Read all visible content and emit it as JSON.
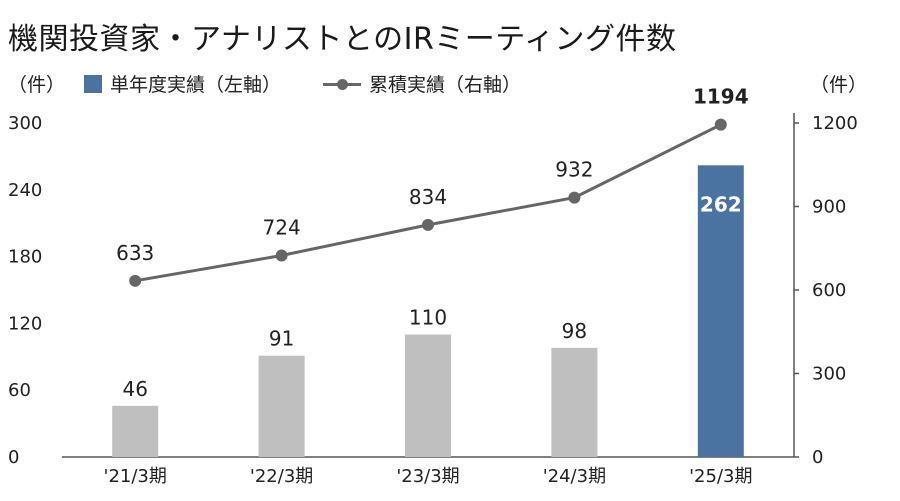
{
  "title": "機関投資家・アナリストとのIRミーティング件数",
  "units": {
    "left": "（件）",
    "right": "（件）"
  },
  "legend": {
    "bar": "単年度実績（左軸）",
    "line": "累積実績（右軸）"
  },
  "colors": {
    "bar": "#bfbfbf",
    "bar_highlight": "#4a73a2",
    "line": "#666666",
    "axis": "#555555"
  },
  "chart_data": {
    "type": "bar+line",
    "categories": [
      "'21/3期",
      "'22/3期",
      "'23/3期",
      "'24/3期",
      "'25/3期"
    ],
    "series": [
      {
        "name": "単年度実績（左軸）",
        "type": "bar",
        "axis": "left",
        "values": [
          46,
          91,
          110,
          98,
          262
        ],
        "value_labels": [
          "46",
          "91",
          "110",
          "98",
          "262"
        ]
      },
      {
        "name": "累積実績（右軸）",
        "type": "line",
        "axis": "right",
        "values": [
          633,
          724,
          834,
          932,
          1194
        ],
        "value_labels": [
          "633",
          "724",
          "834",
          "932",
          "1194"
        ]
      }
    ],
    "highlight_index": 4,
    "y_left": {
      "range": [
        0,
        300
      ],
      "ticks": [
        "0",
        "60",
        "120",
        "180",
        "240",
        "300"
      ]
    },
    "y_right": {
      "range": [
        0,
        1200
      ],
      "ticks": [
        "0",
        "300",
        "600",
        "900",
        "1200"
      ]
    },
    "grid": false,
    "legend_position": "top"
  }
}
